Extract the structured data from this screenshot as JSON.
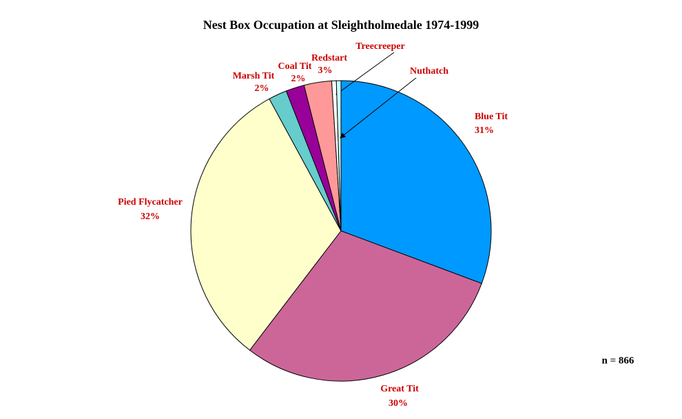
{
  "chart_data": {
    "type": "pie",
    "title": "Nest Box Occupation at Sleightholmedale 1974-1999",
    "categories": [
      "Blue Tit",
      "Great Tit",
      "Pied Flycatcher",
      "Marsh Tit",
      "Coal Tit",
      "Redstart",
      "Treecreeper",
      "Nuthatch"
    ],
    "values": [
      31,
      30,
      32,
      2,
      2,
      3,
      0.5,
      0.5
    ],
    "value_labels": [
      "31%",
      "30%",
      "32%",
      "2%",
      "2%",
      "3%",
      null,
      null
    ],
    "colors": [
      "#0099ff",
      "#cc6699",
      "#ffffcc",
      "#66cccc",
      "#990099",
      "#ff9999",
      "#ffffff",
      "#ccffff"
    ],
    "annotation": "n = 866"
  }
}
